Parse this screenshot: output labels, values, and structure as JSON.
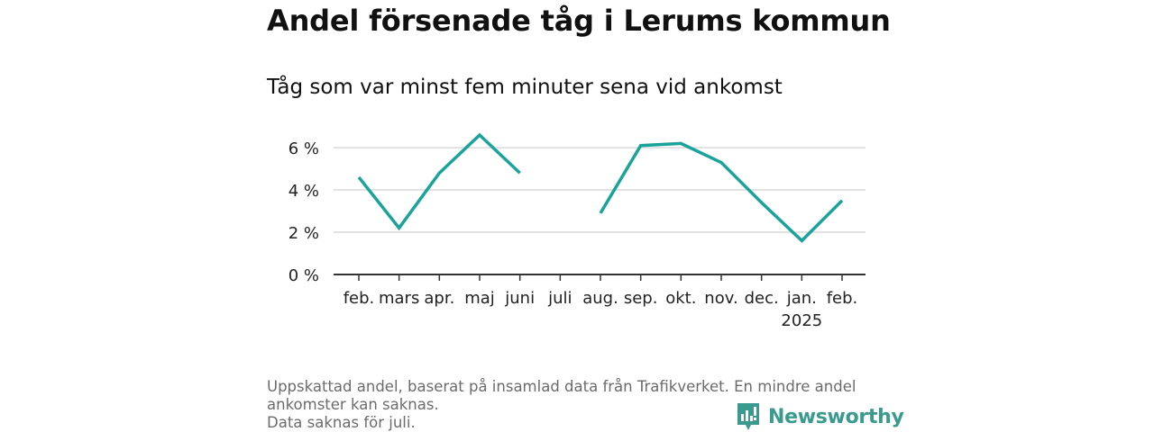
{
  "title": "Andel försenade tåg i Lerums kommun",
  "subtitle": "Tåg som var minst fem minuter sena vid ankomst",
  "footnote": [
    "Uppskattad andel, baserat på insamlad data från Trafikverket. En mindre andel",
    "ankomster kan saknas.",
    "Data saknas för juli."
  ],
  "brand": "Newsworthy",
  "colors": {
    "line": "#1aa39a",
    "grid": "#d9d9d9",
    "axis": "#333333",
    "brand": "#3a9a8e"
  },
  "chart_data": {
    "type": "line",
    "categories": [
      "feb.",
      "mars",
      "apr.",
      "maj",
      "juni",
      "juli",
      "aug.",
      "sep.",
      "okt.",
      "nov.",
      "dec.",
      "jan.",
      "feb."
    ],
    "category_sublabels": {
      "11": "2025"
    },
    "series": [
      {
        "values": [
          4.6,
          2.2,
          4.8,
          6.6,
          4.8,
          null,
          2.9,
          6.1,
          6.2,
          5.3,
          3.4,
          1.6,
          3.5
        ]
      }
    ],
    "y_ticks": [
      0,
      2,
      4,
      6
    ],
    "y_tick_labels": [
      "0 %",
      "2 %",
      "4 %",
      "6 %"
    ],
    "ylim": [
      0,
      6.6
    ],
    "grid": true,
    "xlabel": "",
    "ylabel": ""
  }
}
